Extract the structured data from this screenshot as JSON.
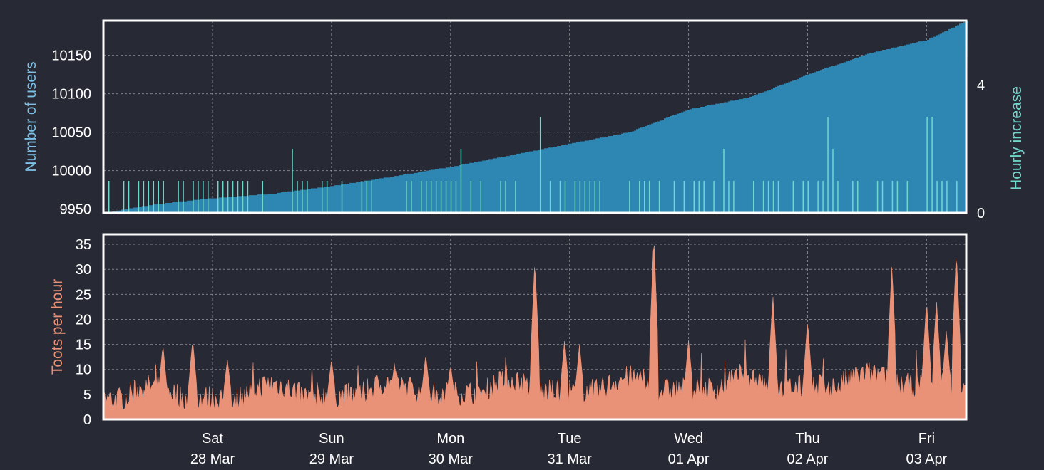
{
  "chart_data": [
    {
      "type": "area",
      "panel": "top",
      "ylabel": "Number of users",
      "y2label": "Hourly increase",
      "ylim": [
        9945,
        10195
      ],
      "y2lim": [
        0,
        6
      ],
      "yticks": [
        9950,
        10000,
        10050,
        10100,
        10150
      ],
      "y2ticks": [
        0,
        4
      ],
      "grid": true,
      "xlim": [
        "2020-03-27 02:00",
        "2020-04-03 08:00"
      ],
      "series": [
        {
          "kind": "cumulative-area",
          "color": "#2e86b2",
          "points": [
            [
              "2020-03-27 02:00",
              9945
            ],
            [
              "2020-03-27 12:00",
              9956
            ],
            [
              "2020-03-27 22:00",
              9963
            ],
            [
              "2020-03-28 12:00",
              9970
            ],
            [
              "2020-03-29 00:00",
              9980
            ],
            [
              "2020-03-29 12:00",
              9992
            ],
            [
              "2020-03-30 00:00",
              10005
            ],
            [
              "2020-03-30 12:00",
              10020
            ],
            [
              "2020-03-31 00:00",
              10035
            ],
            [
              "2020-03-31 12:00",
              10050
            ],
            [
              "2020-04-01 00:00",
              10080
            ],
            [
              "2020-04-01 12:00",
              10095
            ],
            [
              "2020-04-02 00:00",
              10125
            ],
            [
              "2020-04-02 12:00",
              10152
            ],
            [
              "2020-04-03 00:00",
              10170
            ],
            [
              "2020-04-03 08:00",
              10195
            ]
          ]
        },
        {
          "kind": "hourly-bars",
          "color": "#6ed8cc",
          "note_axis": "y2"
        }
      ]
    },
    {
      "type": "area",
      "panel": "bottom",
      "ylabel": "Toots per hour",
      "ylim": [
        0,
        37
      ],
      "yticks": [
        0,
        5,
        10,
        15,
        20,
        25,
        30,
        35
      ],
      "grid": true,
      "xlim": [
        "2020-03-27 02:00",
        "2020-04-03 08:00"
      ],
      "series": [
        {
          "kind": "toots",
          "color": "#ea9278",
          "peaks": [
            [
              "2020-03-27 14:00",
              15
            ],
            [
              "2020-03-27 20:00",
              16
            ],
            [
              "2020-03-28 03:00",
              12
            ],
            [
              "2020-03-29 00:00",
              12
            ],
            [
              "2020-03-29 19:00",
              13
            ],
            [
              "2020-03-30 00:00",
              11
            ],
            [
              "2020-03-30 17:00",
              32
            ],
            [
              "2020-03-30 23:00",
              16
            ],
            [
              "2020-03-31 02:00",
              15
            ],
            [
              "2020-03-31 17:00",
              37
            ],
            [
              "2020-04-01 00:00",
              16
            ],
            [
              "2020-04-01 17:00",
              25
            ],
            [
              "2020-04-02 00:00",
              20
            ],
            [
              "2020-04-02 17:00",
              31
            ],
            [
              "2020-04-03 00:00",
              24
            ],
            [
              "2020-04-03 02:00",
              24
            ],
            [
              "2020-04-03 04:00",
              18
            ],
            [
              "2020-04-03 06:00",
              34
            ]
          ]
        }
      ]
    }
  ],
  "xaxis": {
    "ticks": [
      {
        "at": "2020-03-28 00:00",
        "day": "Sat",
        "date": "28 Mar"
      },
      {
        "at": "2020-03-29 00:00",
        "day": "Sun",
        "date": "29 Mar"
      },
      {
        "at": "2020-03-30 00:00",
        "day": "Mon",
        "date": "30 Mar"
      },
      {
        "at": "2020-03-31 00:00",
        "day": "Tue",
        "date": "31 Mar"
      },
      {
        "at": "2020-04-01 00:00",
        "day": "Wed",
        "date": "01 Apr"
      },
      {
        "at": "2020-04-02 00:00",
        "day": "Thu",
        "date": "02 Apr"
      },
      {
        "at": "2020-04-03 00:00",
        "day": "Fri",
        "date": "03 Apr"
      }
    ]
  },
  "colors": {
    "background": "#272a35",
    "users_label": "#7cc2e8",
    "increase_label": "#6ed8cc",
    "toots_label": "#ea9278"
  }
}
